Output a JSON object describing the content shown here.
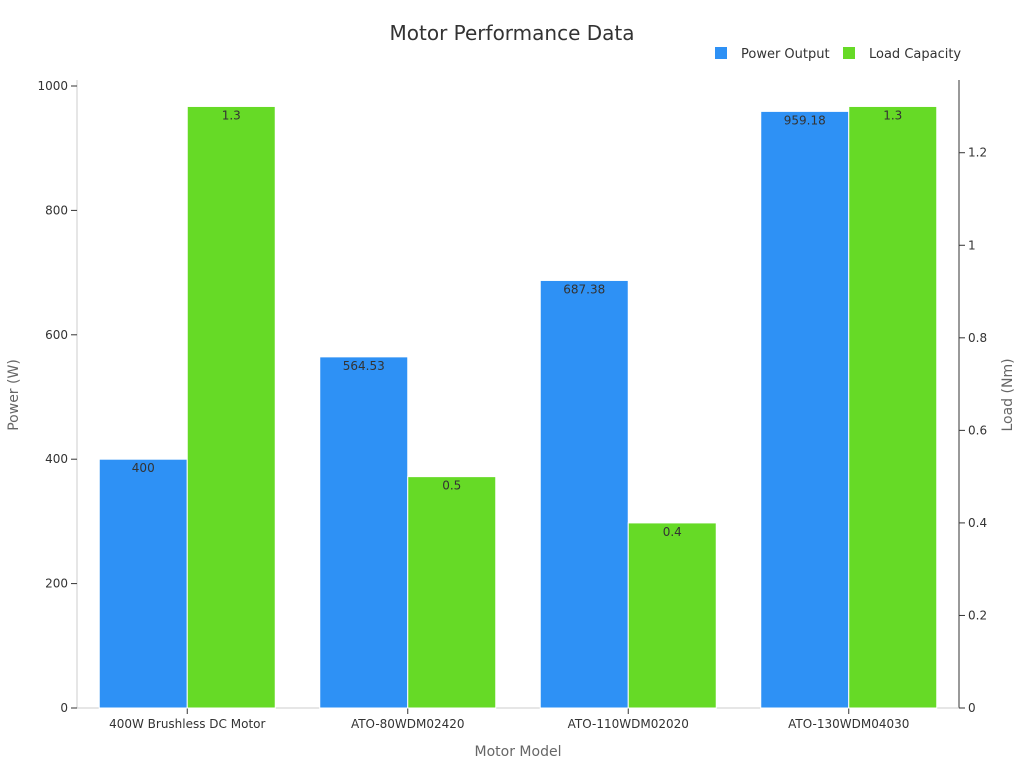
{
  "chart_data": {
    "type": "bar",
    "title": "Motor Performance Data",
    "xlabel": "Motor Model",
    "categories": [
      "400W Brushless DC Motor",
      "ATO-80WDM02420",
      "ATO-110WDM02020",
      "ATO-130WDM04030"
    ],
    "y_axes": {
      "left": {
        "label": "Power (W)",
        "range": [
          0,
          1000
        ],
        "ticks": [
          0,
          200,
          400,
          600,
          800,
          1000
        ]
      },
      "right": {
        "label": "Load (Nm)",
        "range": [
          0,
          1.355
        ],
        "ticks": [
          0,
          0.2,
          0.4,
          0.6,
          0.8,
          1,
          1.2
        ]
      }
    },
    "series": [
      {
        "name": "Power Output",
        "axis": "left",
        "color": "#2e91f5",
        "values": [
          400,
          564.53,
          687.38,
          959.18
        ],
        "labels": [
          "400",
          "564.53",
          "687.38",
          "959.18"
        ]
      },
      {
        "name": "Load Capacity",
        "axis": "right",
        "color": "#66da26",
        "values": [
          1.3,
          0.5,
          0.4,
          1.3
        ],
        "labels": [
          "1.3",
          "0.5",
          "0.4",
          "1.3"
        ]
      }
    ],
    "grid": false,
    "legend_position": "top-right"
  },
  "colors": {
    "axis_line": "#cccccc",
    "right_axis_line": "#333333",
    "tick_text": "#333333",
    "axis_label": "#666666",
    "title": "#333333",
    "data_label": "#333333"
  }
}
